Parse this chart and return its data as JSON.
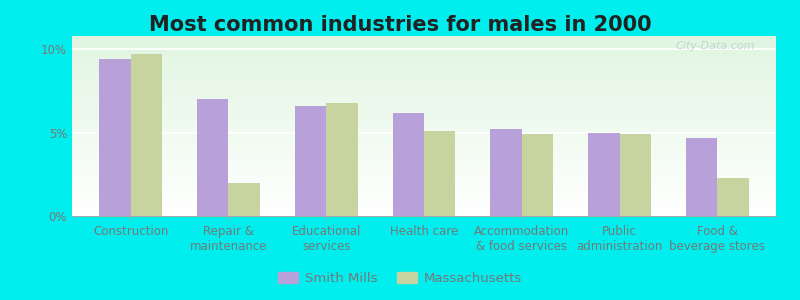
{
  "title": "Most common industries for males in 2000",
  "categories": [
    "Construction",
    "Repair &\nmaintenance",
    "Educational\nservices",
    "Health care",
    "Accommodation\n& food services",
    "Public\nadministration",
    "Food &\nbeverage stores"
  ],
  "smith_mills": [
    9.4,
    7.0,
    6.6,
    6.2,
    5.2,
    5.0,
    4.7
  ],
  "massachusetts": [
    9.7,
    2.0,
    6.8,
    5.1,
    4.9,
    4.9,
    2.3
  ],
  "smith_mills_color": "#b8a0d8",
  "massachusetts_color": "#c8d4a0",
  "figure_bg_color": "#00eeee",
  "plot_bg_color": "#f0f8f0",
  "ylabel_ticks": [
    "0%",
    "5%",
    "10%"
  ],
  "ytick_values": [
    0,
    5,
    10
  ],
  "ylim": [
    0,
    10.8
  ],
  "bar_width": 0.32,
  "legend_smith_mills": "Smith Mills",
  "legend_massachusetts": "Massachusetts",
  "title_fontsize": 15,
  "tick_fontsize": 8.5,
  "legend_fontsize": 9.5,
  "watermark_text": "City-Data.com",
  "tick_color": "#777777"
}
